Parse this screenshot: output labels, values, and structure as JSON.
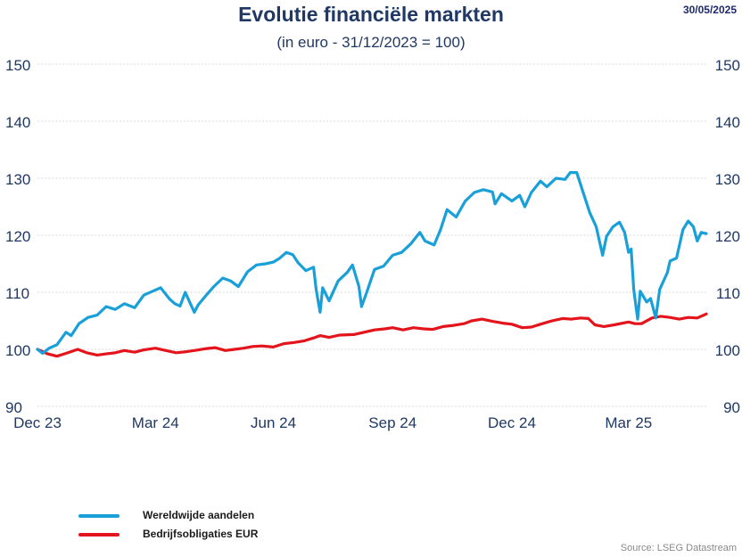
{
  "header": {
    "title": "Evolutie financiële markten",
    "subtitle": "(in euro - 31/12/2023 = 100)",
    "date": "30/05/2025"
  },
  "source": "Source: LSEG Datastream",
  "chart_data": {
    "type": "line",
    "title": "Evolutie financiële markten",
    "subtitle": "(in euro - 31/12/2023 = 100)",
    "ylim": [
      90,
      150
    ],
    "yticks": [
      90,
      100,
      110,
      120,
      130,
      140,
      150
    ],
    "y_axis_sides": "left and right",
    "x_tick_labels": [
      "Dec 23",
      "Mar 24",
      "Jun 24",
      "Sep 24",
      "Dec 24",
      "Mar 25"
    ],
    "x_tick_dates": [
      "2023-12-31",
      "2024-03-31",
      "2024-06-30",
      "2024-09-30",
      "2024-12-31",
      "2025-03-31"
    ],
    "xlim": [
      "2023-12-31",
      "2025-05-30"
    ],
    "grid": "horizontal dotted",
    "legend_position": "bottom-left",
    "series": [
      {
        "name": "Wereldwijde aandelen",
        "color": "#1aa0d8",
        "points": [
          [
            "2023-12-31",
            100.0
          ],
          [
            "2024-01-04",
            99.3
          ],
          [
            "2024-01-09",
            100.2
          ],
          [
            "2024-01-15",
            100.8
          ],
          [
            "2024-01-22",
            103.0
          ],
          [
            "2024-01-26",
            102.4
          ],
          [
            "2024-02-01",
            104.5
          ],
          [
            "2024-02-08",
            105.6
          ],
          [
            "2024-02-15",
            106.0
          ],
          [
            "2024-02-22",
            107.5
          ],
          [
            "2024-02-29",
            107.0
          ],
          [
            "2024-03-07",
            108.0
          ],
          [
            "2024-03-15",
            107.3
          ],
          [
            "2024-03-22",
            109.5
          ],
          [
            "2024-03-29",
            110.2
          ],
          [
            "2024-04-04",
            110.8
          ],
          [
            "2024-04-11",
            108.8
          ],
          [
            "2024-04-15",
            108.0
          ],
          [
            "2024-04-19",
            107.6
          ],
          [
            "2024-04-23",
            110.0
          ],
          [
            "2024-04-30",
            106.5
          ],
          [
            "2024-05-03",
            107.8
          ],
          [
            "2024-05-10",
            109.7
          ],
          [
            "2024-05-15",
            111.0
          ],
          [
            "2024-05-22",
            112.5
          ],
          [
            "2024-05-28",
            112.0
          ],
          [
            "2024-06-03",
            111.0
          ],
          [
            "2024-06-10",
            113.6
          ],
          [
            "2024-06-17",
            114.8
          ],
          [
            "2024-06-24",
            115.0
          ],
          [
            "2024-06-30",
            115.3
          ],
          [
            "2024-07-05",
            116.0
          ],
          [
            "2024-07-10",
            117.0
          ],
          [
            "2024-07-15",
            116.6
          ],
          [
            "2024-07-19",
            115.2
          ],
          [
            "2024-07-25",
            113.8
          ],
          [
            "2024-07-31",
            114.4
          ],
          [
            "2024-08-02",
            110.5
          ],
          [
            "2024-08-05",
            106.5
          ],
          [
            "2024-08-07",
            110.8
          ],
          [
            "2024-08-12",
            108.5
          ],
          [
            "2024-08-19",
            112.0
          ],
          [
            "2024-08-26",
            113.5
          ],
          [
            "2024-08-30",
            114.8
          ],
          [
            "2024-09-04",
            111.0
          ],
          [
            "2024-09-06",
            107.5
          ],
          [
            "2024-09-10",
            110.0
          ],
          [
            "2024-09-16",
            114.0
          ],
          [
            "2024-09-23",
            114.6
          ],
          [
            "2024-09-30",
            116.5
          ],
          [
            "2024-10-07",
            117.0
          ],
          [
            "2024-10-14",
            118.5
          ],
          [
            "2024-10-21",
            120.5
          ],
          [
            "2024-10-25",
            119.0
          ],
          [
            "2024-11-01",
            118.3
          ],
          [
            "2024-11-06",
            121.0
          ],
          [
            "2024-11-11",
            124.5
          ],
          [
            "2024-11-18",
            123.2
          ],
          [
            "2024-11-25",
            126.0
          ],
          [
            "2024-12-02",
            127.5
          ],
          [
            "2024-12-09",
            128.0
          ],
          [
            "2024-12-16",
            127.6
          ],
          [
            "2024-12-18",
            125.5
          ],
          [
            "2024-12-23",
            127.3
          ],
          [
            "2024-12-31",
            126.0
          ],
          [
            "2025-01-06",
            127.0
          ],
          [
            "2025-01-10",
            125.0
          ],
          [
            "2025-01-15",
            127.5
          ],
          [
            "2025-01-22",
            129.5
          ],
          [
            "2025-01-27",
            128.5
          ],
          [
            "2025-02-03",
            130.0
          ],
          [
            "2025-02-10",
            129.8
          ],
          [
            "2025-02-14",
            131.0
          ],
          [
            "2025-02-19",
            131.0
          ],
          [
            "2025-02-24",
            127.5
          ],
          [
            "2025-03-01",
            124.0
          ],
          [
            "2025-03-06",
            121.5
          ],
          [
            "2025-03-11",
            116.5
          ],
          [
            "2025-03-14",
            119.8
          ],
          [
            "2025-03-19",
            121.5
          ],
          [
            "2025-03-24",
            122.3
          ],
          [
            "2025-03-28",
            120.5
          ],
          [
            "2025-03-31",
            117.0
          ],
          [
            "2025-04-02",
            117.6
          ],
          [
            "2025-04-04",
            110.5
          ],
          [
            "2025-04-07",
            105.3
          ],
          [
            "2025-04-09",
            110.2
          ],
          [
            "2025-04-14",
            108.3
          ],
          [
            "2025-04-17",
            108.9
          ],
          [
            "2025-04-21",
            105.5
          ],
          [
            "2025-04-24",
            110.5
          ],
          [
            "2025-04-30",
            113.5
          ],
          [
            "2025-05-02",
            115.5
          ],
          [
            "2025-05-07",
            116.0
          ],
          [
            "2025-05-12",
            121.0
          ],
          [
            "2025-05-16",
            122.5
          ],
          [
            "2025-05-20",
            121.5
          ],
          [
            "2025-05-23",
            119.0
          ],
          [
            "2025-05-26",
            120.5
          ],
          [
            "2025-05-30",
            120.3
          ]
        ]
      },
      {
        "name": "Bedrijfsobligaties EUR",
        "color": "#e3141b",
        "points": [
          [
            "2023-12-31",
            100.0
          ],
          [
            "2024-01-08",
            99.2
          ],
          [
            "2024-01-15",
            98.8
          ],
          [
            "2024-01-22",
            99.3
          ],
          [
            "2024-01-31",
            100.0
          ],
          [
            "2024-02-07",
            99.4
          ],
          [
            "2024-02-15",
            99.0
          ],
          [
            "2024-02-22",
            99.2
          ],
          [
            "2024-02-29",
            99.4
          ],
          [
            "2024-03-07",
            99.8
          ],
          [
            "2024-03-15",
            99.5
          ],
          [
            "2024-03-22",
            99.9
          ],
          [
            "2024-03-31",
            100.2
          ],
          [
            "2024-04-08",
            99.8
          ],
          [
            "2024-04-16",
            99.4
          ],
          [
            "2024-04-24",
            99.6
          ],
          [
            "2024-04-30",
            99.8
          ],
          [
            "2024-05-08",
            100.1
          ],
          [
            "2024-05-16",
            100.3
          ],
          [
            "2024-05-24",
            99.8
          ],
          [
            "2024-05-31",
            100.0
          ],
          [
            "2024-06-07",
            100.2
          ],
          [
            "2024-06-14",
            100.5
          ],
          [
            "2024-06-21",
            100.6
          ],
          [
            "2024-06-30",
            100.4
          ],
          [
            "2024-07-08",
            101.0
          ],
          [
            "2024-07-16",
            101.2
          ],
          [
            "2024-07-24",
            101.5
          ],
          [
            "2024-07-31",
            102.0
          ],
          [
            "2024-08-05",
            102.4
          ],
          [
            "2024-08-12",
            102.1
          ],
          [
            "2024-08-20",
            102.5
          ],
          [
            "2024-08-31",
            102.6
          ],
          [
            "2024-09-08",
            103.0
          ],
          [
            "2024-09-16",
            103.4
          ],
          [
            "2024-09-24",
            103.6
          ],
          [
            "2024-09-30",
            103.8
          ],
          [
            "2024-10-08",
            103.4
          ],
          [
            "2024-10-16",
            103.8
          ],
          [
            "2024-10-24",
            103.6
          ],
          [
            "2024-10-31",
            103.5
          ],
          [
            "2024-11-08",
            104.0
          ],
          [
            "2024-11-16",
            104.2
          ],
          [
            "2024-11-24",
            104.5
          ],
          [
            "2024-11-30",
            105.0
          ],
          [
            "2024-12-08",
            105.3
          ],
          [
            "2024-12-16",
            104.9
          ],
          [
            "2024-12-24",
            104.6
          ],
          [
            "2024-12-31",
            104.4
          ],
          [
            "2025-01-08",
            103.8
          ],
          [
            "2025-01-15",
            103.9
          ],
          [
            "2025-01-22",
            104.4
          ],
          [
            "2025-01-31",
            105.0
          ],
          [
            "2025-02-08",
            105.4
          ],
          [
            "2025-02-15",
            105.3
          ],
          [
            "2025-02-22",
            105.5
          ],
          [
            "2025-02-28",
            105.4
          ],
          [
            "2025-03-05",
            104.3
          ],
          [
            "2025-03-12",
            104.0
          ],
          [
            "2025-03-20",
            104.3
          ],
          [
            "2025-03-31",
            104.8
          ],
          [
            "2025-04-05",
            104.5
          ],
          [
            "2025-04-10",
            104.5
          ],
          [
            "2025-04-18",
            105.5
          ],
          [
            "2025-04-25",
            105.8
          ],
          [
            "2025-05-02",
            105.6
          ],
          [
            "2025-05-09",
            105.3
          ],
          [
            "2025-05-16",
            105.6
          ],
          [
            "2025-05-23",
            105.5
          ],
          [
            "2025-05-30",
            106.2
          ]
        ]
      }
    ]
  }
}
